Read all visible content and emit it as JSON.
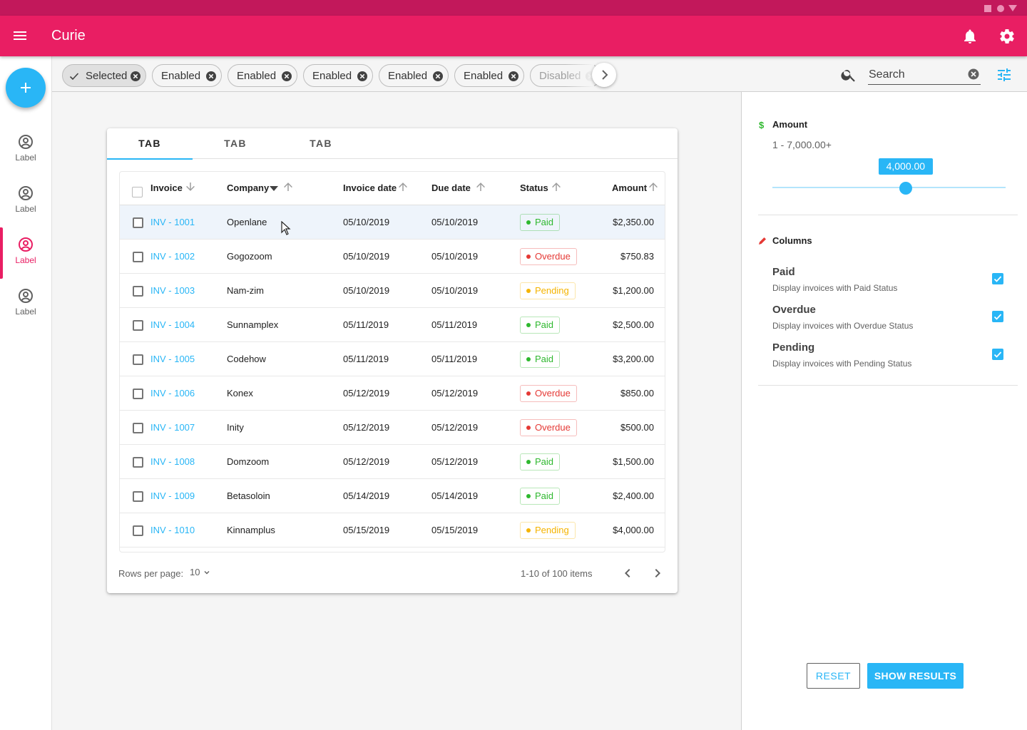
{
  "app": {
    "title": "Curie"
  },
  "colors": {
    "primary": "#e91e63",
    "primary_dark": "#c2185b",
    "accent": "#29b6f6",
    "paid": "#2eb82e",
    "overdue": "#e53935",
    "pending": "#f5b400"
  },
  "nav": {
    "fab_icon": "add-icon",
    "items": [
      {
        "label": "Label",
        "icon": "account-circle-icon",
        "active": false
      },
      {
        "label": "Label",
        "icon": "account-circle-icon",
        "active": false
      },
      {
        "label": "Label",
        "icon": "account-circle-icon",
        "active": true
      },
      {
        "label": "Label",
        "icon": "account-circle-icon",
        "active": false
      }
    ]
  },
  "chips": [
    {
      "label": "Selected",
      "state": "selected"
    },
    {
      "label": "Enabled",
      "state": "enabled"
    },
    {
      "label": "Enabled",
      "state": "enabled"
    },
    {
      "label": "Enabled",
      "state": "enabled"
    },
    {
      "label": "Enabled",
      "state": "enabled"
    },
    {
      "label": "Enabled",
      "state": "enabled"
    },
    {
      "label": "Disabled",
      "state": "disabled"
    }
  ],
  "search": {
    "placeholder": "Search",
    "value": ""
  },
  "tabs": [
    {
      "label": "TAB"
    },
    {
      "label": "TAB"
    },
    {
      "label": "TAB"
    }
  ],
  "table": {
    "columns": {
      "invoice": "Invoice",
      "company": "Company",
      "invoice_date": "Invoice date",
      "due_date": "Due date",
      "status": "Status",
      "amount": "Amount"
    },
    "rows": [
      {
        "invoice": "INV - 1001",
        "company": "Openlane",
        "invoice_date": "05/10/2019",
        "due_date": "05/10/2019",
        "status": "Paid",
        "amount": "$2,350.00"
      },
      {
        "invoice": "INV - 1002",
        "company": "Gogozoom",
        "invoice_date": "05/10/2019",
        "due_date": "05/10/2019",
        "status": "Overdue",
        "amount": "$750.83"
      },
      {
        "invoice": "INV - 1003",
        "company": "Nam-zim",
        "invoice_date": "05/10/2019",
        "due_date": "05/10/2019",
        "status": "Pending",
        "amount": "$1,200.00"
      },
      {
        "invoice": "INV - 1004",
        "company": "Sunnamplex",
        "invoice_date": "05/11/2019",
        "due_date": "05/11/2019",
        "status": "Paid",
        "amount": "$2,500.00"
      },
      {
        "invoice": "INV - 1005",
        "company": "Codehow",
        "invoice_date": "05/11/2019",
        "due_date": "05/11/2019",
        "status": "Paid",
        "amount": "$3,200.00"
      },
      {
        "invoice": "INV - 1006",
        "company": "Konex",
        "invoice_date": "05/12/2019",
        "due_date": "05/12/2019",
        "status": "Overdue",
        "amount": "$850.00"
      },
      {
        "invoice": "INV - 1007",
        "company": "Inity",
        "invoice_date": "05/12/2019",
        "due_date": "05/12/2019",
        "status": "Overdue",
        "amount": "$500.00"
      },
      {
        "invoice": "INV - 1008",
        "company": "Domzoom",
        "invoice_date": "05/12/2019",
        "due_date": "05/12/2019",
        "status": "Paid",
        "amount": "$1,500.00"
      },
      {
        "invoice": "INV - 1009",
        "company": "Betasoloin",
        "invoice_date": "05/14/2019",
        "due_date": "05/14/2019",
        "status": "Paid",
        "amount": "$2,400.00"
      },
      {
        "invoice": "INV - 1010",
        "company": "Kinnamplus",
        "invoice_date": "05/15/2019",
        "due_date": "05/15/2019",
        "status": "Pending",
        "amount": "$4,000.00"
      }
    ]
  },
  "pagination": {
    "rows_per_page_label": "Rows per page:",
    "rows_per_page": "10",
    "range": "1-10 of 100 items"
  },
  "filters": {
    "amount": {
      "title": "Amount",
      "icon": "dollar-icon",
      "range": "1 - 7,000.00+",
      "value_label": "4,000.00",
      "min": 1,
      "max": 7000,
      "value": 4000
    },
    "columns": {
      "title": "Columns",
      "icon": "pencil-icon",
      "options": [
        {
          "title": "Paid",
          "description": "Display invoices with Paid Status",
          "checked": true
        },
        {
          "title": "Overdue",
          "description": "Display invoices with Overdue Status",
          "checked": true
        },
        {
          "title": "Pending",
          "description": "Display invoices with Pending Status",
          "checked": true
        }
      ]
    },
    "reset_label": "RESET",
    "show_results_label": "SHOW RESULTS"
  }
}
